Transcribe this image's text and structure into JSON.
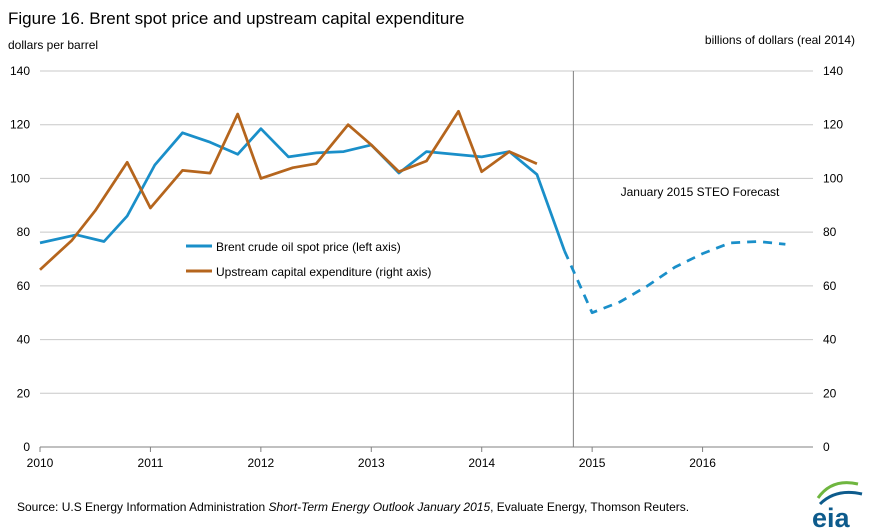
{
  "chart_data": {
    "type": "line",
    "title": "Figure 16. Brent spot price and upstream capital expenditure",
    "ylabel_left": "dollars per barrel",
    "ylabel_right": "billions of dollars (real 2014)",
    "ylim_left": [
      0,
      140
    ],
    "ylim_right": [
      0,
      140
    ],
    "yticks": [
      0,
      20,
      40,
      60,
      80,
      100,
      120,
      140
    ],
    "xlim": [
      2010,
      2017
    ],
    "xticks": [
      2010,
      2011,
      2012,
      2013,
      2014,
      2015,
      2016
    ],
    "grid": true,
    "legend_position": "center-left",
    "forecast_start": 2014.83,
    "forecast_label": "January 2015 STEO Forecast",
    "series": [
      {
        "name": "Brent crude oil spot price (left axis)",
        "axis": "left",
        "color": "#1a8fc9",
        "x": [
          2010.0,
          2010.33,
          2010.58,
          2010.79,
          2011.04,
          2011.29,
          2011.54,
          2011.79,
          2012.0,
          2012.25,
          2012.5,
          2012.75,
          2013.0,
          2013.25,
          2013.5,
          2013.75,
          2014.0,
          2014.25,
          2014.5,
          2014.75
        ],
        "y": [
          76,
          79,
          76.5,
          86,
          105,
          117,
          113.5,
          109,
          118.5,
          108,
          109.5,
          110,
          112.5,
          102,
          110,
          109,
          108,
          110,
          101.5,
          73
        ],
        "forecast_x": [
          2014.75,
          2015.0,
          2015.25,
          2015.5,
          2015.75,
          2016.0,
          2016.25,
          2016.5,
          2016.75
        ],
        "forecast_y": [
          73,
          50,
          54,
          60,
          67,
          72,
          76,
          76.5,
          75.5
        ]
      },
      {
        "name": "Upstream capital expenditure (right axis)",
        "axis": "right",
        "color": "#b5651d",
        "x": [
          2010.0,
          2010.29,
          2010.5,
          2010.79,
          2011.0,
          2011.29,
          2011.54,
          2011.79,
          2012.0,
          2012.29,
          2012.5,
          2012.79,
          2013.0,
          2013.25,
          2013.5,
          2013.79,
          2014.0,
          2014.25,
          2014.5
        ],
        "y": [
          66,
          77,
          88,
          106,
          89,
          103,
          102,
          124,
          100,
          104,
          105.5,
          120,
          112.5,
          102.5,
          106.5,
          125,
          102.5,
          110,
          105.5
        ]
      }
    ]
  },
  "source": {
    "prefix": "Source: U.S Energy Information Administration ",
    "italic": "Short-Term Energy Outlook January 2015",
    "suffix": ", Evaluate Energy, Thomson Reuters."
  },
  "logo": {
    "text": "eia",
    "colors": [
      "#0d5b8c",
      "#6fb63f"
    ]
  }
}
